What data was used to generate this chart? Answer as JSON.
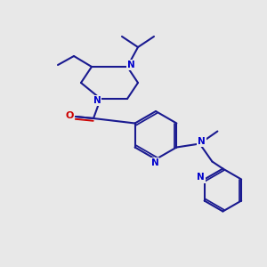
{
  "bg_color": "#e8e8e8",
  "bond_color": "#1a1a90",
  "oxygen_color": "#cc0000",
  "nitrogen_color": "#0000cc",
  "lw": 1.5,
  "figsize": [
    3.0,
    3.0
  ],
  "dpi": 100,
  "xlim": [
    0,
    300
  ],
  "ylim": [
    0,
    300
  ]
}
